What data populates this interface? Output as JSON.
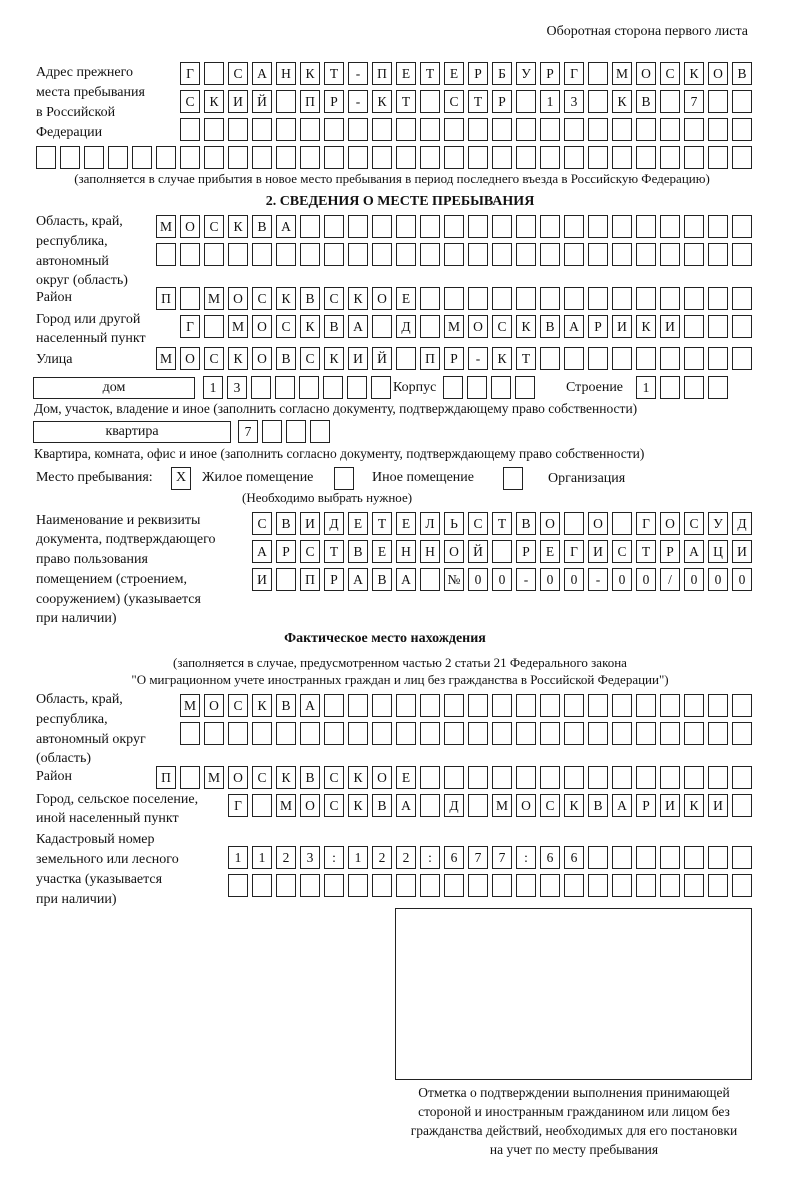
{
  "header": "Оборотная сторона первого листа",
  "prev_address": {
    "label": [
      "Адрес прежнего",
      "места пребывания",
      "в Российской",
      "Федерации"
    ],
    "rows": [
      [
        "Г",
        "",
        "С",
        "А",
        "Н",
        "К",
        "Т",
        "-",
        "П",
        "Е",
        "Т",
        "Е",
        "Р",
        "Б",
        "У",
        "Р",
        "Г",
        "",
        "М",
        "О",
        "С",
        "К",
        "О",
        "В"
      ],
      [
        "С",
        "К",
        "И",
        "Й",
        "",
        "П",
        "Р",
        "-",
        "К",
        "Т",
        "",
        "С",
        "Т",
        "Р",
        "",
        "1",
        "3",
        "",
        "К",
        "В",
        "",
        "7",
        "",
        ""
      ],
      [
        "",
        "",
        "",
        "",
        "",
        "",
        "",
        "",
        "",
        "",
        "",
        "",
        "",
        "",
        "",
        "",
        "",
        "",
        "",
        "",
        "",
        "",
        "",
        ""
      ],
      [
        "",
        "",
        "",
        "",
        "",
        "",
        "",
        "",
        "",
        "",
        "",
        "",
        "",
        "",
        "",
        "",
        "",
        "",
        "",
        "",
        "",
        "",
        "",
        "",
        "",
        "",
        "",
        "",
        "",
        ""
      ]
    ],
    "note": "(заполняется в случае прибытия в новое место пребывания в период последнего въезда в Российскую Федерацию)"
  },
  "section2": {
    "title": "2. СВЕДЕНИЯ О МЕСТЕ ПРЕБЫВАНИЯ",
    "region_label": [
      "Область, край,",
      "республика,",
      "автономный",
      "округ (область)"
    ],
    "region_rows": [
      [
        "М",
        "О",
        "С",
        "К",
        "В",
        "А",
        "",
        "",
        "",
        "",
        "",
        "",
        "",
        "",
        "",
        "",
        "",
        "",
        "",
        "",
        "",
        "",
        "",
        "",
        ""
      ],
      [
        "",
        "",
        "",
        "",
        "",
        "",
        "",
        "",
        "",
        "",
        "",
        "",
        "",
        "",
        "",
        "",
        "",
        "",
        "",
        "",
        "",
        "",
        "",
        "",
        ""
      ]
    ],
    "district_label": "Район",
    "district_row": [
      "П",
      "",
      "М",
      "О",
      "С",
      "К",
      "В",
      "С",
      "К",
      "О",
      "Е",
      "",
      "",
      "",
      "",
      "",
      "",
      "",
      "",
      "",
      "",
      "",
      "",
      "",
      ""
    ],
    "city_label": [
      "Город или другой",
      "населенный пункт"
    ],
    "city_row": [
      "Г",
      "",
      "М",
      "О",
      "С",
      "К",
      "В",
      "А",
      "",
      "Д",
      "",
      "М",
      "О",
      "С",
      "К",
      "В",
      "А",
      "Р",
      "И",
      "К",
      "И",
      "",
      "",
      ""
    ],
    "street_label": "Улица",
    "street_row": [
      "М",
      "О",
      "С",
      "К",
      "О",
      "В",
      "С",
      "К",
      "И",
      "Й",
      "",
      "П",
      "Р",
      "-",
      "К",
      "Т",
      "",
      "",
      "",
      "",
      "",
      "",
      "",
      "",
      ""
    ],
    "house_type": "дом",
    "house_cells": [
      "1",
      "3",
      "",
      "",
      "",
      "",
      "",
      ""
    ],
    "korpus_label": "Корпус",
    "korpus_cells": [
      "",
      "",
      "",
      ""
    ],
    "stroenie_label": "Строение",
    "stroenie_cells": [
      "1",
      "",
      "",
      ""
    ],
    "house_note": "Дом, участок, владение и иное (заполнить согласно документу, подтверждающему право собственности)",
    "flat_type": "квартира",
    "flat_cells": [
      "7",
      "",
      "",
      ""
    ],
    "flat_note": "Квартира, комната, офис и иное (заполнить согласно документу, подтверждающему право собственности)",
    "place_label": "Место пребывания:",
    "place_options": [
      {
        "label": "Жилое помещение",
        "mark": "X"
      },
      {
        "label": "Иное помещение",
        "mark": ""
      },
      {
        "label": "Организация",
        "mark": ""
      }
    ],
    "place_note": "(Необходимо выбрать нужное)",
    "doc_label": [
      "Наименование и реквизиты",
      "документа, подтверждающего",
      "право пользования",
      "помещением (строением,",
      "сооружением) (указывается",
      "при наличии)"
    ],
    "doc_rows": [
      [
        "С",
        "В",
        "И",
        "Д",
        "Е",
        "Т",
        "Е",
        "Л",
        "Ь",
        "С",
        "Т",
        "В",
        "О",
        "",
        "О",
        "",
        "Г",
        "О",
        "С",
        "У",
        "Д"
      ],
      [
        "А",
        "Р",
        "С",
        "Т",
        "В",
        "Е",
        "Н",
        "Н",
        "О",
        "Й",
        "",
        "Р",
        "Е",
        "Г",
        "И",
        "С",
        "Т",
        "Р",
        "А",
        "Ц",
        "И"
      ],
      [
        "И",
        "",
        "П",
        "Р",
        "А",
        "В",
        "А",
        "",
        "№",
        "0",
        "0",
        "-",
        "0",
        "0",
        "-",
        "0",
        "0",
        "/",
        "0",
        "0",
        "0"
      ]
    ]
  },
  "actual": {
    "title": "Фактическое место нахождения",
    "note": [
      "(заполняется в случае, предусмотренном частью 2 статьи 21 Федерального закона",
      "\"О миграционном учете иностранных граждан и лиц без гражданства в Российской Федерации\")"
    ],
    "region_label": [
      "Область, край,",
      "республика,",
      "автономный округ",
      "(область)"
    ],
    "region_rows": [
      [
        "М",
        "О",
        "С",
        "К",
        "В",
        "А",
        "",
        "",
        "",
        "",
        "",
        "",
        "",
        "",
        "",
        "",
        "",
        "",
        "",
        "",
        "",
        "",
        "",
        ""
      ],
      [
        "",
        "",
        "",
        "",
        "",
        "",
        "",
        "",
        "",
        "",
        "",
        "",
        "",
        "",
        "",
        "",
        "",
        "",
        "",
        "",
        "",
        "",
        "",
        ""
      ]
    ],
    "district_label": "Район",
    "district_row": [
      "П",
      "",
      "М",
      "О",
      "С",
      "К",
      "В",
      "С",
      "К",
      "О",
      "Е",
      "",
      "",
      "",
      "",
      "",
      "",
      "",
      "",
      "",
      "",
      "",
      "",
      "",
      ""
    ],
    "city_label": [
      "Город, сельское поселение,",
      "иной населенный пункт"
    ],
    "city_row": [
      "Г",
      "",
      "М",
      "О",
      "С",
      "К",
      "В",
      "А",
      "",
      "Д",
      "",
      "М",
      "О",
      "С",
      "К",
      "В",
      "А",
      "Р",
      "И",
      "К",
      "И",
      ""
    ],
    "cadastre_label": [
      "Кадастровый номер",
      "земельного или лесного",
      "участка (указывается",
      "при наличии)"
    ],
    "cadastre_rows": [
      [
        "1",
        "1",
        "2",
        "3",
        ":",
        "1",
        "2",
        "2",
        ":",
        "6",
        "7",
        "7",
        ":",
        "6",
        "6",
        "",
        "",
        "",
        "",
        "",
        "",
        ""
      ],
      [
        "",
        "",
        "",
        "",
        "",
        "",
        "",
        "",
        "",
        "",
        "",
        "",
        "",
        "",
        "",
        "",
        "",
        "",
        "",
        "",
        "",
        ""
      ]
    ]
  },
  "stamp_caption": [
    "Отметка о подтверждении выполнения принимающей",
    "стороной и иностранным гражданином или лицом без",
    "гражданства действий, необходимых для его постановки",
    "на учет по месту пребывания"
  ]
}
